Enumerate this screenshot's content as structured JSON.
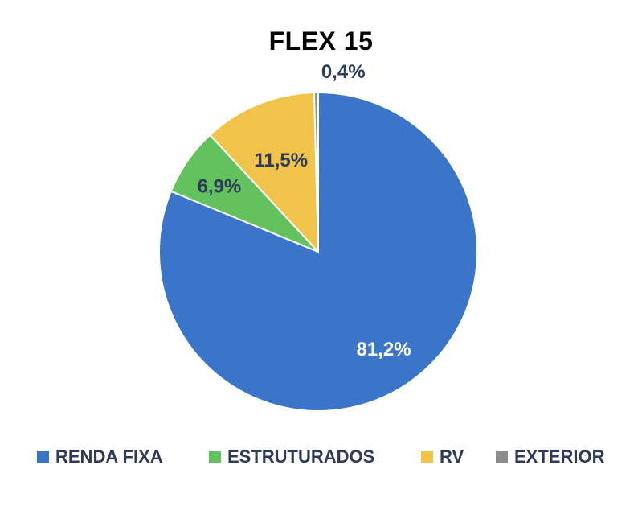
{
  "chart_data": {
    "type": "pie",
    "title": "FLEX 15",
    "series": [
      {
        "values": [
          81.2,
          6.9,
          11.5,
          0.4
        ]
      }
    ],
    "categories": [
      "RENDA FIXA",
      "ESTRUTURADOS",
      "RV",
      "EXTERIOR"
    ],
    "values": [
      81.2,
      6.9,
      11.5,
      0.4
    ],
    "data_labels": [
      "81,2%",
      "6,9%",
      "11,5%",
      "0,4%"
    ],
    "colors": [
      "#3a75c9",
      "#63c25e",
      "#f0c44b",
      "#8c8c8c"
    ],
    "label_colors": [
      "#ffffff",
      "#2e3a59",
      "#2e3a59",
      "#2e3a59"
    ],
    "legend_position": "bottom"
  }
}
